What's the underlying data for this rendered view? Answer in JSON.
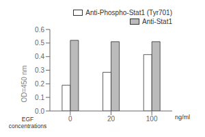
{
  "chart_data": {
    "type": "bar",
    "categories": [
      "0",
      "20",
      "100"
    ],
    "xlabel": "EGF\nconcentrations",
    "ylabel": "OD=450 nm",
    "annotations": [
      {
        "text": "ng/ml"
      }
    ],
    "series": [
      {
        "name": "Anti-Phospho-Stat1 (Tyr701)",
        "color": "#ffffff",
        "values": [
          0.19,
          0.285,
          0.415
        ]
      },
      {
        "name": "Anti-Stat1",
        "color": "#bbbbbb",
        "values": [
          0.52,
          0.51,
          0.51
        ]
      }
    ],
    "ylim": [
      0,
      0.6
    ],
    "yticks": [
      {
        "value": 0,
        "label": "0.0"
      },
      0.1,
      0.2,
      0.3,
      0.4,
      0.5,
      0.6
    ],
    "grid": false,
    "legend": "upper right"
  }
}
